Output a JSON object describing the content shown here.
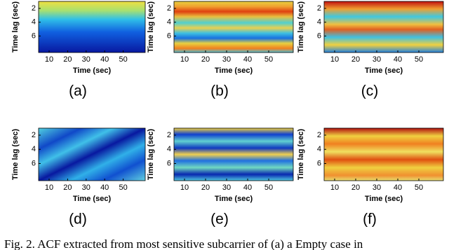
{
  "panels": [
    {
      "label": "(a)",
      "xlabel": "Time (sec)",
      "ylabel": "Time lag (sec)",
      "xticks": [
        10,
        20,
        30,
        40,
        50
      ],
      "yticks": [
        2,
        4,
        6
      ]
    },
    {
      "label": "(b)",
      "xlabel": "Time (sec)",
      "ylabel": "Time lag (sec)",
      "xticks": [
        10,
        20,
        30,
        40,
        50
      ],
      "yticks": [
        2,
        4,
        6
      ]
    },
    {
      "label": "(c)",
      "xlabel": "Time (sec)",
      "ylabel": "Time lag (sec)",
      "xticks": [
        10,
        20,
        30,
        40,
        50
      ],
      "yticks": [
        2,
        4,
        6
      ]
    },
    {
      "label": "(d)",
      "xlabel": "Time (sec)",
      "ylabel": "Time lag (sec)",
      "xticks": [
        10,
        20,
        30,
        40,
        50
      ],
      "yticks": [
        2,
        4,
        6
      ]
    },
    {
      "label": "(e)",
      "xlabel": "Time (sec)",
      "ylabel": "Time lag (sec)",
      "xticks": [
        10,
        20,
        30,
        40,
        50
      ],
      "yticks": [
        2,
        4,
        6
      ]
    },
    {
      "label": "(f)",
      "xlabel": "Time (sec)",
      "ylabel": "Time lag (sec)",
      "xticks": [
        10,
        20,
        30,
        40,
        50
      ],
      "yticks": [
        2,
        4,
        6
      ]
    }
  ],
  "caption": "Fig. 2.  ACF extracted from most sensitive subcarrier of (a) a Empty case in"
}
